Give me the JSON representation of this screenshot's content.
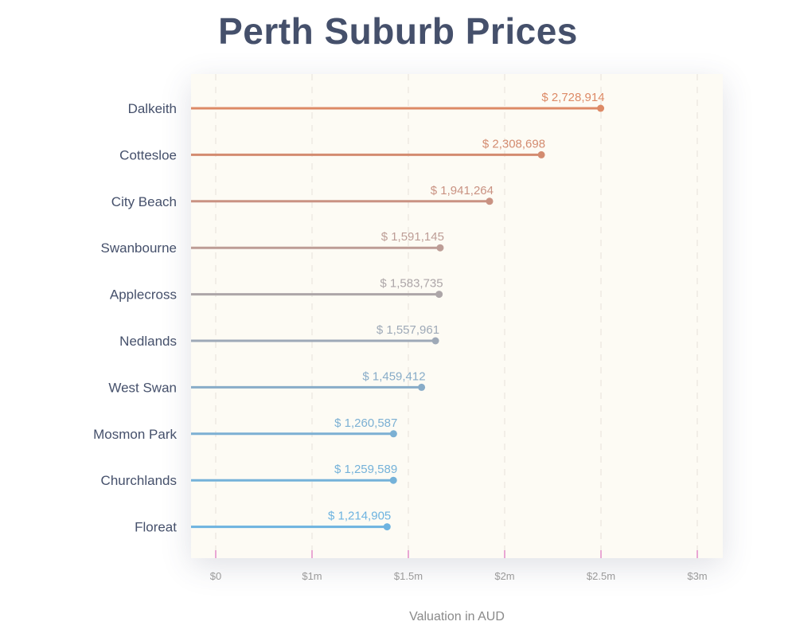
{
  "chart_data": {
    "type": "bar",
    "style": "lollipop-horizontal",
    "title": "Perth Suburb Prices",
    "xlabel": "Valuation in AUD",
    "ylabel": "",
    "categories": [
      "Dalkeith",
      "Cottesloe",
      "City Beach",
      "Swanbourne",
      "Applecross",
      "Nedlands",
      "West Swan",
      "Mosmon Park",
      "Churchlands",
      "Floreat"
    ],
    "values": [
      2728914,
      2308698,
      1941264,
      1591145,
      1583735,
      1557961,
      1459412,
      1260587,
      1259589,
      1214905
    ],
    "value_labels": [
      "$  2,728,914",
      "$ 2,308,698",
      "$ 1,941,264",
      "$ 1,591,145",
      "$ 1,583,735",
      "$ 1,557,961",
      "$ 1,459,412",
      "$ 1,260,587",
      "$ 1,259,589",
      "$ 1,214,905"
    ],
    "colors": [
      "#dd8a66",
      "#d38b6f",
      "#c99282",
      "#bd9d96",
      "#ada6a8",
      "#9ea9b7",
      "#88acc8",
      "#7cb0d3",
      "#75b2d9",
      "#6db3e0"
    ],
    "x_ticks": [
      "$0",
      "$1m",
      "$1.5m",
      "$2m",
      "$2.5m",
      "$3m"
    ],
    "grid": true,
    "legend": "none",
    "background": "#fdfbf4"
  }
}
